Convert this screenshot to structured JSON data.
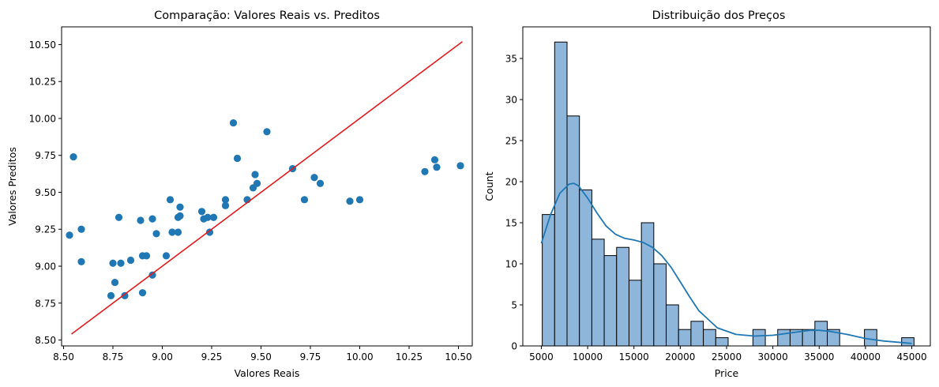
{
  "chart_data": [
    {
      "type": "scatter",
      "title": "Comparação: Valores Reais vs. Preditos",
      "xlabel": "Valores Reais",
      "ylabel": "Valores Preditos",
      "xlim": [
        8.49,
        10.57
      ],
      "ylim": [
        8.46,
        10.62
      ],
      "xticks": [
        8.5,
        8.75,
        9.0,
        9.25,
        9.5,
        9.75,
        10.0,
        10.25,
        10.5
      ],
      "xtick_labels": [
        "8.50",
        "8.75",
        "9.00",
        "9.25",
        "9.50",
        "9.75",
        "10.00",
        "10.25",
        "10.50"
      ],
      "yticks": [
        8.5,
        8.75,
        9.0,
        9.25,
        9.5,
        9.75,
        10.0,
        10.25,
        10.5
      ],
      "ytick_labels": [
        "8.50",
        "8.75",
        "9.00",
        "9.25",
        "9.50",
        "9.75",
        "10.00",
        "10.25",
        "10.50"
      ],
      "point_color": "#1f77b4",
      "points": [
        [
          8.53,
          9.21
        ],
        [
          8.55,
          9.74
        ],
        [
          8.59,
          9.25
        ],
        [
          8.59,
          9.03
        ],
        [
          8.74,
          8.8
        ],
        [
          8.75,
          9.02
        ],
        [
          8.76,
          8.89
        ],
        [
          8.78,
          9.33
        ],
        [
          8.79,
          9.02
        ],
        [
          8.81,
          8.8
        ],
        [
          8.84,
          9.04
        ],
        [
          8.89,
          9.31
        ],
        [
          8.9,
          9.07
        ],
        [
          8.9,
          8.82
        ],
        [
          8.92,
          9.07
        ],
        [
          8.95,
          8.94
        ],
        [
          8.95,
          9.32
        ],
        [
          8.97,
          9.22
        ],
        [
          9.02,
          9.07
        ],
        [
          9.04,
          9.45
        ],
        [
          9.05,
          9.23
        ],
        [
          9.08,
          9.33
        ],
        [
          9.08,
          9.23
        ],
        [
          9.09,
          9.4
        ],
        [
          9.09,
          9.34
        ],
        [
          9.2,
          9.37
        ],
        [
          9.21,
          9.32
        ],
        [
          9.23,
          9.33
        ],
        [
          9.24,
          9.23
        ],
        [
          9.26,
          9.33
        ],
        [
          9.32,
          9.45
        ],
        [
          9.32,
          9.41
        ],
        [
          9.36,
          9.97
        ],
        [
          9.38,
          9.73
        ],
        [
          9.43,
          9.45
        ],
        [
          9.46,
          9.53
        ],
        [
          9.47,
          9.62
        ],
        [
          9.48,
          9.56
        ],
        [
          9.53,
          9.91
        ],
        [
          9.66,
          9.66
        ],
        [
          9.72,
          9.45
        ],
        [
          9.77,
          9.6
        ],
        [
          9.8,
          9.56
        ],
        [
          9.95,
          9.44
        ],
        [
          10.0,
          9.45
        ],
        [
          10.33,
          9.64
        ],
        [
          10.38,
          9.72
        ],
        [
          10.39,
          9.67
        ],
        [
          10.51,
          9.68
        ]
      ],
      "reference_line": {
        "x": [
          8.54,
          10.52
        ],
        "y": [
          8.54,
          10.52
        ],
        "color": "#e41a1c"
      }
    },
    {
      "type": "bar",
      "subtype": "histogram",
      "title": "Distribuição dos Preços",
      "xlabel": "Price",
      "ylabel": "Count",
      "xlim": [
        3000,
        47000
      ],
      "ylim": [
        0,
        38.85
      ],
      "xticks": [
        5000,
        10000,
        15000,
        20000,
        25000,
        30000,
        35000,
        40000,
        45000
      ],
      "xtick_labels": [
        "5000",
        "10000",
        "15000",
        "20000",
        "25000",
        "30000",
        "35000",
        "40000",
        "45000"
      ],
      "yticks": [
        0,
        5,
        10,
        15,
        20,
        25,
        30,
        35
      ],
      "ytick_labels": [
        "0",
        "5",
        "10",
        "15",
        "20",
        "25",
        "30",
        "35"
      ],
      "bar_color": "#8db6da",
      "bin_start": 5100,
      "bin_width": 1338,
      "values": [
        16,
        37,
        28,
        19,
        13,
        11,
        12,
        8,
        15,
        10,
        5,
        2,
        3,
        2,
        1,
        0,
        0,
        2,
        0,
        2,
        2,
        2,
        3,
        2,
        0,
        0,
        2,
        0,
        0,
        1
      ],
      "kde": {
        "color": "#1f77b4",
        "x": [
          5000,
          6000,
          7000,
          8000,
          8500,
          9000,
          10000,
          11000,
          12000,
          13000,
          14000,
          15000,
          16000,
          17000,
          18000,
          19000,
          20000,
          21000,
          22000,
          24000,
          26000,
          28000,
          30000,
          32000,
          34000,
          35000,
          36000,
          38000,
          40000,
          42000,
          44000,
          45000
        ],
        "y": [
          12.5,
          16.0,
          18.6,
          19.7,
          19.8,
          19.5,
          18.0,
          16.2,
          14.6,
          13.6,
          13.1,
          12.9,
          12.6,
          12.0,
          11.0,
          9.6,
          7.8,
          6.0,
          4.3,
          2.2,
          1.4,
          1.2,
          1.3,
          1.6,
          1.9,
          1.9,
          1.8,
          1.4,
          0.9,
          0.6,
          0.4,
          0.3
        ]
      }
    }
  ]
}
